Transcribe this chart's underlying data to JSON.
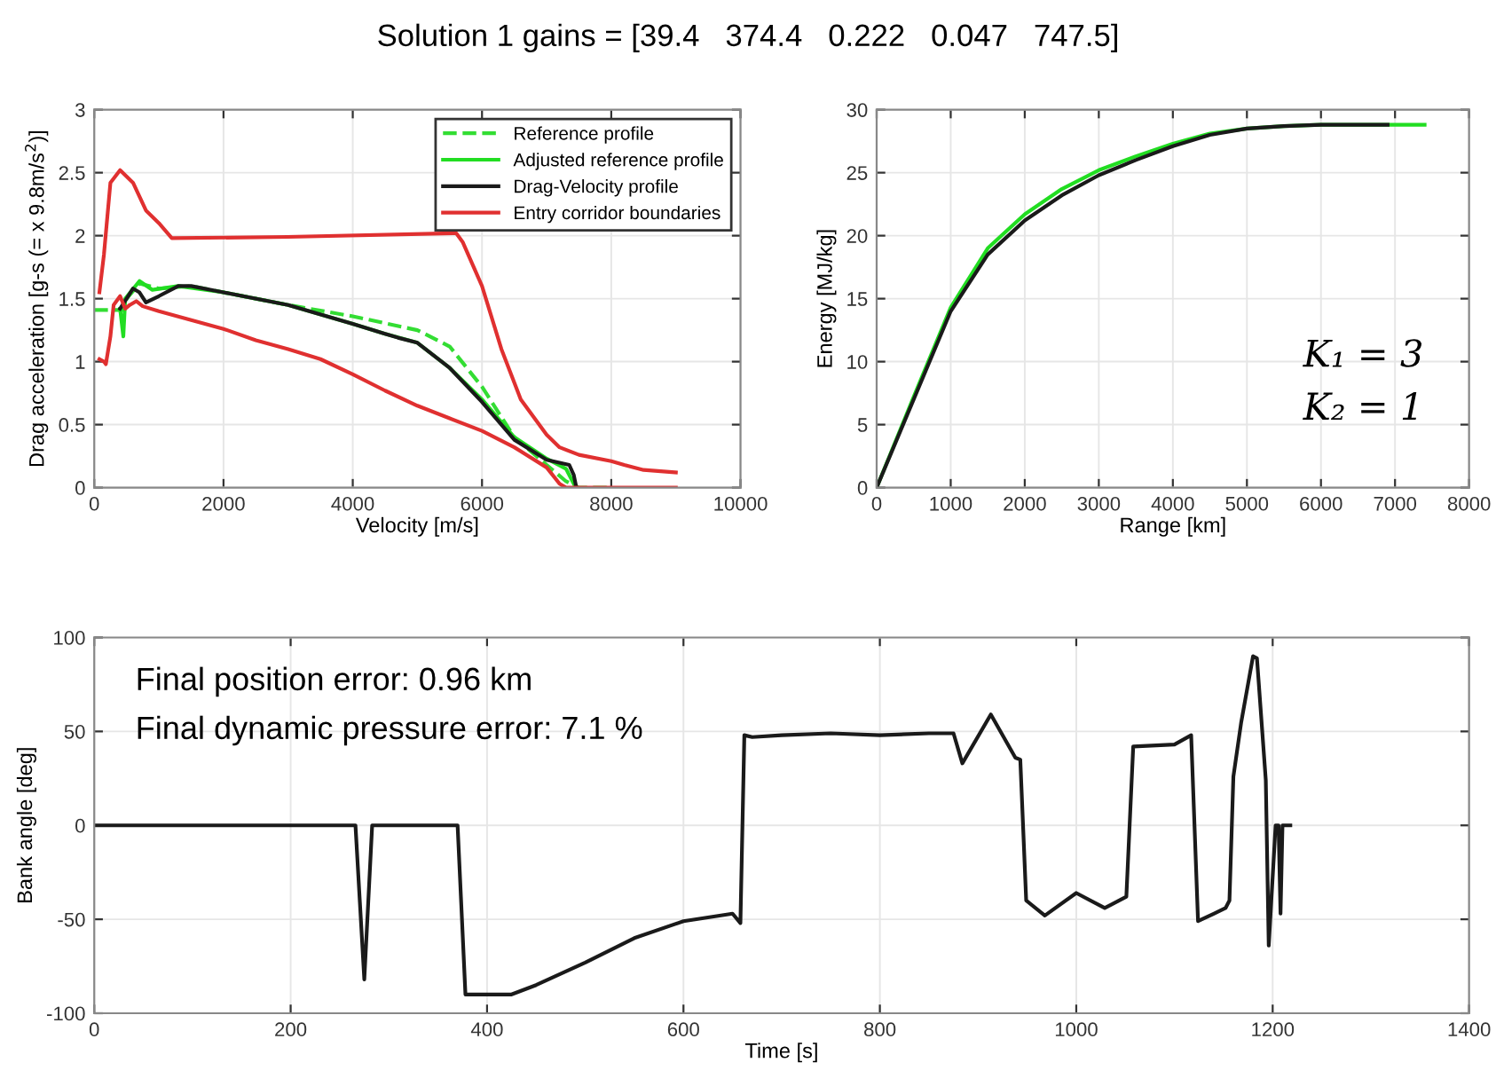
{
  "chart_data": [
    {
      "type": "line",
      "title": "Solution 1 gains = [39.4   374.4   0.222   0.047   747.5]",
      "xlabel": "Velocity [m/s]",
      "ylabel": "Drag acceleration [g-s (= x 9.8m/s$^{2}$)]",
      "xlim": [
        0,
        10000
      ],
      "xticks": [
        0,
        2000,
        4000,
        6000,
        8000,
        10000
      ],
      "ylim": [
        0,
        3
      ],
      "yticks": [
        0,
        0.5,
        1,
        1.5,
        2,
        2.5,
        3
      ],
      "grid": true,
      "legend": "top right",
      "series": [
        {
          "name": "Reference profile",
          "color": "#33dd33",
          "line_style": "dashed",
          "x": [
            0,
            450,
            500,
            700,
            1000,
            1500,
            2000,
            3000,
            4000,
            5000,
            5500,
            6000,
            6500,
            7000,
            7300,
            7500,
            8000
          ],
          "values": [
            1.41,
            1.41,
            1.5,
            1.62,
            1.58,
            1.6,
            1.55,
            1.45,
            1.36,
            1.25,
            1.12,
            0.8,
            0.4,
            0.18,
            0.05,
            0,
            0
          ]
        },
        {
          "name": "Adjusted reference profile",
          "color": "#22dd22",
          "line_style": "solid",
          "x": [
            400,
            450,
            480,
            700,
            900,
            1300,
            2000,
            3000,
            4000,
            4500,
            5000,
            5500,
            6000,
            6500,
            7000,
            7300,
            7450
          ],
          "values": [
            1.42,
            1.2,
            1.5,
            1.64,
            1.57,
            1.6,
            1.55,
            1.45,
            1.3,
            1.22,
            1.15,
            0.95,
            0.7,
            0.4,
            0.23,
            0.15,
            0
          ]
        },
        {
          "name": "Drag-Velocity profile",
          "color": "#1a1a1a",
          "line_style": "solid",
          "x": [
            400,
            500,
            600,
            700,
            800,
            1000,
            1300,
            1500,
            2000,
            3000,
            4000,
            4500,
            4700,
            5000,
            5500,
            6000,
            6500,
            7000,
            7350,
            7420,
            7460
          ],
          "values": [
            1.42,
            1.5,
            1.58,
            1.55,
            1.47,
            1.52,
            1.6,
            1.6,
            1.55,
            1.45,
            1.3,
            1.22,
            1.19,
            1.15,
            0.95,
            0.68,
            0.38,
            0.22,
            0.18,
            0.1,
            0
          ]
        },
        {
          "name": "Entry corridor boundaries",
          "color": "#e03030",
          "line_style": "solid",
          "x": [
            80,
            150,
            250,
            400,
            600,
            800,
            1000,
            1200,
            3000,
            5600,
            5700,
            6000,
            6300,
            6600,
            7000,
            7200,
            7500,
            8000,
            8200,
            8500,
            9000
          ],
          "values": [
            1.55,
            1.85,
            2.42,
            2.52,
            2.42,
            2.2,
            2.1,
            1.98,
            1.99,
            2.02,
            1.95,
            1.6,
            1.1,
            0.7,
            0.42,
            0.32,
            0.26,
            0.21,
            0.18,
            0.14,
            0.12
          ]
        },
        {
          "color": "#e03030",
          "line_style": "solid",
          "x": [
            80,
            150,
            180,
            250,
            300,
            400,
            480,
            550,
            650,
            750,
            1000,
            1500,
            2000,
            2500,
            3000,
            3500,
            4000,
            4500,
            5000,
            5500,
            6000,
            6500,
            7000,
            7200,
            7300,
            9000
          ],
          "values": [
            1.02,
            1.0,
            0.98,
            1.2,
            1.45,
            1.52,
            1.42,
            1.45,
            1.48,
            1.44,
            1.4,
            1.33,
            1.26,
            1.17,
            1.1,
            1.02,
            0.9,
            0.77,
            0.65,
            0.55,
            0.45,
            0.32,
            0.16,
            0.03,
            0,
            0
          ]
        }
      ]
    },
    {
      "type": "line",
      "xlabel": "Range [km]",
      "ylabel": "Energy [MJ/kg]",
      "xlim": [
        0,
        8000
      ],
      "xticks": [
        0,
        1000,
        2000,
        3000,
        4000,
        5000,
        6000,
        7000,
        8000
      ],
      "ylim": [
        0,
        30
      ],
      "yticks": [
        0,
        5,
        10,
        15,
        20,
        25,
        30
      ],
      "grid": true,
      "annotations": [
        "K₁ = 3",
        "K₂ = 1"
      ],
      "series": [
        {
          "color": "#22dd22",
          "x": [
            0,
            500,
            1000,
            1500,
            2000,
            2500,
            3000,
            3500,
            4000,
            4500,
            5000,
            5500,
            6000,
            7400
          ],
          "values": [
            0,
            7.2,
            14.3,
            19,
            21.7,
            23.7,
            25.2,
            26.3,
            27.3,
            28.1,
            28.5,
            28.7,
            28.8,
            28.8
          ]
        },
        {
          "color": "#1a1a1a",
          "x": [
            0,
            500,
            1000,
            1500,
            2000,
            2500,
            3000,
            3500,
            4000,
            4500,
            5000,
            5500,
            6000,
            6900
          ],
          "values": [
            0,
            7,
            14,
            18.5,
            21.2,
            23.2,
            24.8,
            26,
            27.1,
            28,
            28.5,
            28.7,
            28.8,
            28.8
          ]
        }
      ]
    },
    {
      "type": "line",
      "xlabel": "Time [s]",
      "ylabel": "Bank angle [deg]",
      "xlim": [
        0,
        1400
      ],
      "xticks": [
        0,
        200,
        400,
        600,
        800,
        1000,
        1200,
        1400
      ],
      "ylim": [
        -100,
        100
      ],
      "yticks": [
        -100,
        -50,
        0,
        50,
        100
      ],
      "grid": true,
      "annotations": [
        "Final position error: 0.96 km",
        "Final dynamic pressure error: 7.1 %"
      ],
      "series": [
        {
          "color": "#1a1a1a",
          "x": [
            0,
            266,
            275,
            283,
            370,
            378,
            425,
            450,
            500,
            550,
            600,
            650,
            658,
            662,
            670,
            700,
            750,
            800,
            850,
            875,
            884,
            913,
            938,
            943,
            949,
            968,
            1000,
            1029,
            1051,
            1058,
            1100,
            1117,
            1124,
            1140,
            1152,
            1156,
            1160,
            1168,
            1180,
            1184,
            1193,
            1196,
            1203,
            1206,
            1208,
            1210,
            1218
          ],
          "values": [
            0,
            0,
            -82,
            0,
            0,
            -90,
            -90,
            -85,
            -73,
            -60,
            -51,
            -47,
            -52,
            48,
            47,
            48,
            49,
            48,
            49,
            49,
            33,
            59,
            36,
            35,
            -40,
            -48,
            -36,
            -44,
            -38,
            42,
            43,
            48,
            -51,
            -47,
            -44,
            -40,
            26,
            55,
            90,
            89,
            24,
            -64,
            0,
            0,
            -47,
            0,
            0
          ]
        }
      ]
    }
  ]
}
